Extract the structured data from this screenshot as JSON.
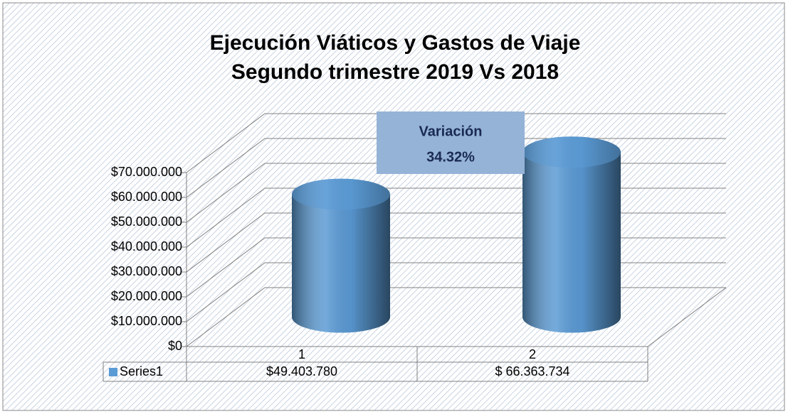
{
  "chart_data": {
    "type": "cylinder3d",
    "title": "Ejecución Viáticos y Gastos de Viaje",
    "subtitle": "Segundo trimestre 2019  Vs 2018",
    "annotation": {
      "title": "Variación",
      "text": "34.32%"
    },
    "categories": [
      "1",
      "2"
    ],
    "series": [
      {
        "name": "Series1",
        "color": "#5b9bd5",
        "values": [
          49403780,
          66363734
        ],
        "value_labels": [
          "$49.403.780",
          "$ 66.363.734"
        ]
      }
    ],
    "ylim": [
      0,
      70000000
    ],
    "yticks": [
      {
        "value": 0,
        "label": "$0"
      },
      {
        "value": 10000000,
        "label": "$10.000.000"
      },
      {
        "value": 20000000,
        "label": "$20.000.000"
      },
      {
        "value": 30000000,
        "label": "$30.000.000"
      },
      {
        "value": 40000000,
        "label": "$40.000.000"
      },
      {
        "value": 50000000,
        "label": "$50.000.000"
      },
      {
        "value": 60000000,
        "label": "$60.000.000"
      },
      {
        "value": 70000000,
        "label": "$70.000.000"
      }
    ],
    "grid": true
  }
}
